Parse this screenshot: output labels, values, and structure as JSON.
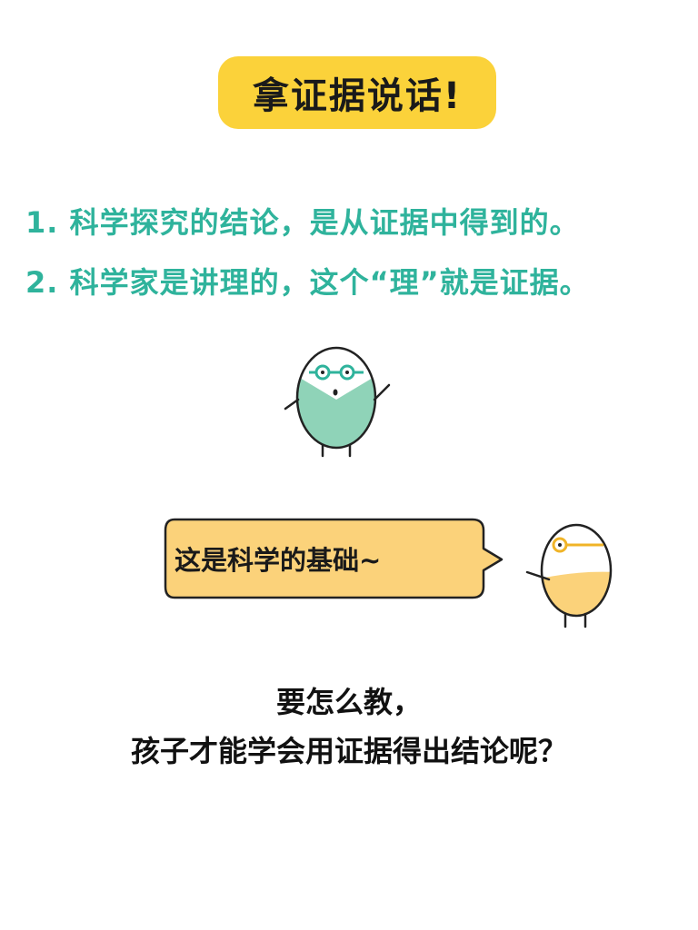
{
  "title": "拿证据说话!",
  "points": [
    "1. 科学探究的结论，是从证据中得到的。",
    "2. 科学家是讲理的，这个“理”就是证据。"
  ],
  "speech_bubble": "这是科学的基础~",
  "question_lines": [
    "要怎么教，",
    "孩子才能学会用证据得出结论呢？"
  ],
  "colors": {
    "title_bg": "#fbd23a",
    "points_text": "#2fb39c",
    "bubble_bg": "#fbd27a",
    "egg_green": "#8fd3b8",
    "egg_yellow": "#fbd27a",
    "outline": "#222222"
  },
  "characters": [
    "egg-scientist-green",
    "egg-scientist-yellow"
  ]
}
